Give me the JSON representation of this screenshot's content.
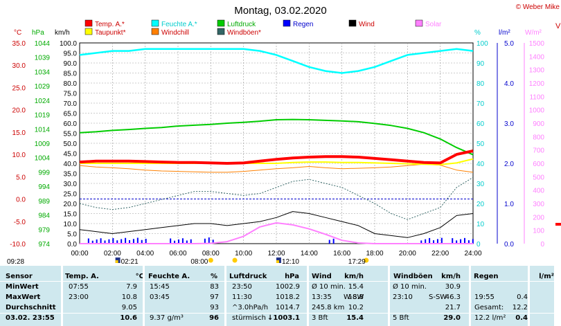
{
  "title": "Montag, 03.02.2020",
  "copyright": "© Weber Mike",
  "legend": [
    {
      "label": "Temp. A.*",
      "color": "#ff0000"
    },
    {
      "label": "Feuchte A.*",
      "color": "#00ffff"
    },
    {
      "label": "Luftdruck",
      "color": "#00cc00"
    },
    {
      "label": "Regen",
      "color": "#0000ff"
    },
    {
      "label": "Wind",
      "color": "#000000"
    },
    {
      "label": "Solar",
      "color": "#ff80ff"
    },
    {
      "label": "Taupunkt*",
      "color": "#ffff00"
    },
    {
      "label": "Windchill",
      "color": "#ff8000"
    },
    {
      "label": "Windböen*",
      "color": "#336666"
    }
  ],
  "axis_headers": {
    "temp": "°C",
    "pressure": "hPa",
    "wind": "km/h",
    "humidity": "%",
    "rain": "l/m²",
    "solar": "W/m²",
    "edge": "V"
  },
  "axes": {
    "temp": [
      "35.0",
      "30.0",
      "25.0",
      "20.0",
      "15.0",
      "10.0",
      "5.0",
      "0.0",
      "-5.0",
      "-10.0"
    ],
    "pressure": [
      "1044",
      "1039",
      "1034",
      "1029",
      "1024",
      "1019",
      "1014",
      "1009",
      "1004",
      "999",
      "994",
      "989",
      "984",
      "979",
      "974"
    ],
    "wind": [
      "100.0",
      "95.0",
      "90.0",
      "85.0",
      "80.0",
      "75.0",
      "70.0",
      "65.0",
      "60.0",
      "55.0",
      "50.0",
      "45.0",
      "40.0",
      "35.0",
      "30.0",
      "25.0",
      "20.0",
      "15.0",
      "10.0",
      "5.0",
      "0.0"
    ],
    "humidity": [
      "100",
      "90",
      "80",
      "70",
      "60",
      "50",
      "40",
      "30",
      "20",
      "10",
      "0"
    ],
    "rain": [
      "5.0",
      "4.0",
      "3.0",
      "2.0",
      "1.0",
      "0.0"
    ],
    "solar": [
      "1500",
      "1400",
      "1300",
      "1200",
      "1100",
      "1000",
      "900",
      "800",
      "700",
      "600",
      "500",
      "400",
      "300",
      "200",
      "100",
      "0"
    ],
    "time": [
      "00:00",
      "02:00",
      "04:00",
      "06:00",
      "08:00",
      "10:00",
      "12:00",
      "14:00",
      "16:00",
      "18:00",
      "20:00",
      "22:00",
      "24:00"
    ]
  },
  "markers": [
    {
      "time": "09:28",
      "icon": "sunrise-icon"
    },
    {
      "time": "02:21",
      "icon": "moon-icon"
    },
    {
      "time": "08:00",
      "icon": "sun-icon"
    },
    {
      "time": "12:10",
      "icon": "moon-icon"
    },
    {
      "time": "17:29",
      "icon": "sunset-icon"
    }
  ],
  "chart_data": {
    "type": "line",
    "x_unit": "hours",
    "x": [
      0,
      1,
      2,
      3,
      4,
      5,
      6,
      7,
      8,
      9,
      10,
      11,
      12,
      13,
      14,
      15,
      16,
      17,
      18,
      19,
      20,
      21,
      22,
      23,
      24
    ],
    "series": [
      {
        "name": "Temp. A.*",
        "unit": "°C",
        "color": "#ff0000",
        "values": [
          8.3,
          8.5,
          8.5,
          8.5,
          8.4,
          8.3,
          8.2,
          8.2,
          8.1,
          8.0,
          8.1,
          8.5,
          8.9,
          9.2,
          9.4,
          9.5,
          9.5,
          9.4,
          9.1,
          8.8,
          8.5,
          8.2,
          8.1,
          10.0,
          10.8
        ]
      },
      {
        "name": "Feuchte A.*",
        "unit": "%",
        "color": "#00ffff",
        "values": [
          94,
          95,
          96,
          96,
          97,
          97,
          97,
          97,
          97,
          97,
          97,
          96,
          94,
          91,
          88,
          86,
          85,
          86,
          88,
          91,
          94,
          95,
          96,
          97,
          96
        ]
      },
      {
        "name": "Luftdruck",
        "unit": "hPa",
        "color": "#00cc00",
        "values": [
          1012.7,
          1013.0,
          1013.5,
          1013.8,
          1014.2,
          1014.5,
          1015.0,
          1015.3,
          1015.6,
          1016.0,
          1016.3,
          1016.7,
          1017.2,
          1017.3,
          1017.2,
          1017.0,
          1016.8,
          1016.5,
          1015.9,
          1015.2,
          1014.2,
          1012.7,
          1010.5,
          1007.5,
          1005.0
        ]
      },
      {
        "name": "Taupunkt*",
        "unit": "°C",
        "color": "#ffff00",
        "values": [
          8.0,
          8.0,
          8.0,
          8.0,
          8.0,
          8.0,
          8.0,
          8.0,
          8.0,
          8.0,
          8.0,
          8.0,
          8.0,
          8.2,
          8.3,
          8.3,
          8.2,
          8.2,
          8.1,
          8.0,
          7.9,
          7.8,
          7.7,
          8.1,
          9.0
        ]
      },
      {
        "name": "Windchill",
        "unit": "°C",
        "color": "#ff8000",
        "values": [
          7.5,
          7.2,
          7.0,
          6.8,
          6.5,
          6.3,
          6.2,
          6.1,
          6.0,
          6.0,
          6.2,
          6.5,
          6.8,
          7.0,
          7.3,
          7.0,
          6.8,
          6.9,
          7.0,
          7.2,
          7.5,
          7.8,
          7.6,
          6.5,
          6.0
        ]
      },
      {
        "name": "Windböen*",
        "unit": "km/h",
        "color": "#336666",
        "values": [
          20,
          18,
          17,
          18,
          20,
          22,
          24,
          26,
          26,
          25,
          24,
          25,
          28,
          31,
          32,
          30,
          28,
          24,
          20,
          15,
          12,
          15,
          18,
          28,
          33
        ]
      },
      {
        "name": "Wind",
        "unit": "km/h",
        "color": "#000000",
        "values": [
          7,
          6,
          5,
          6,
          7,
          8,
          9,
          10,
          10,
          9,
          10,
          11,
          13,
          16,
          15,
          13,
          11,
          9,
          5,
          4,
          3,
          5,
          8,
          14,
          15
        ]
      },
      {
        "name": "Solar",
        "unit": "W/m²",
        "color": "#ff80ff",
        "values": [
          0,
          0,
          0,
          0,
          0,
          0,
          0,
          0,
          2,
          15,
          55,
          125,
          155,
          140,
          110,
          70,
          25,
          5,
          0,
          0,
          0,
          0,
          0,
          0,
          0
        ]
      }
    ],
    "rain_bars": {
      "name": "Regen",
      "unit": "l/m²",
      "color": "#0000ff",
      "periods": [
        [
          0.5,
          4.2
        ],
        [
          5.5,
          6.8
        ],
        [
          7.6,
          8.3
        ],
        [
          15.2,
          15.5
        ],
        [
          20.8,
          22.3
        ],
        [
          22.7,
          24.0
        ]
      ]
    },
    "reference_line": {
      "temp": 0.0
    },
    "grid": true
  },
  "table": {
    "headers": [
      "Sensor",
      "Temp. A.",
      "°C",
      "Feuchte A.",
      "%",
      "Luftdruck",
      "hPa",
      "Wind",
      "km/h",
      "Windböen",
      "km/h",
      "Regen",
      "l/m²"
    ],
    "rows": [
      {
        "label": "MinWert",
        "temp_time": "07:55",
        "temp": "7.9",
        "hum_time": "15:45",
        "hum": "83",
        "press_time": "23:50",
        "press": "1002.9",
        "wind_label": "Ø 10 min.",
        "wind": "15.4",
        "gust_label": "Ø 10 min.",
        "gust": "30.9",
        "rain_time": "",
        "rain": ""
      },
      {
        "label": "MaxWert",
        "temp_time": "23:00",
        "temp": "10.8",
        "hum_time": "03:45",
        "hum": "97",
        "press_time": "11:30",
        "press": "1018.2",
        "wind_label": "13:35",
        "wind_dir": "W-SW",
        "wind": "18.8",
        "gust_label": "23:10",
        "gust_dir": "S-SW",
        "gust": "46.3",
        "rain_time": "19:55",
        "rain": "0.4"
      },
      {
        "label": "Durchschnitt",
        "temp_time": "",
        "temp": "9.05",
        "hum_time": "",
        "hum": "93",
        "press_time": "^3.0hPa/h",
        "press": "1014.7",
        "wind_label": "245.8 km",
        "wind": "10.2",
        "gust_label": "",
        "gust": "21.7",
        "rain_time": "Gesamt:",
        "rain": "12.2"
      },
      {
        "label": "03.02. 23:55",
        "temp_time": "",
        "temp": "10.6",
        "hum_time": "9.37 g/m³",
        "hum": "96",
        "press_time": "stürmisch",
        "press_trend": "↓",
        "press": "1003.1",
        "wind_label": "3 Bft",
        "wind": "15.4",
        "gust_label": "5 Bft",
        "gust": "29.0",
        "rain_time": "12.2 l/m²",
        "rain": "0.4"
      }
    ]
  }
}
